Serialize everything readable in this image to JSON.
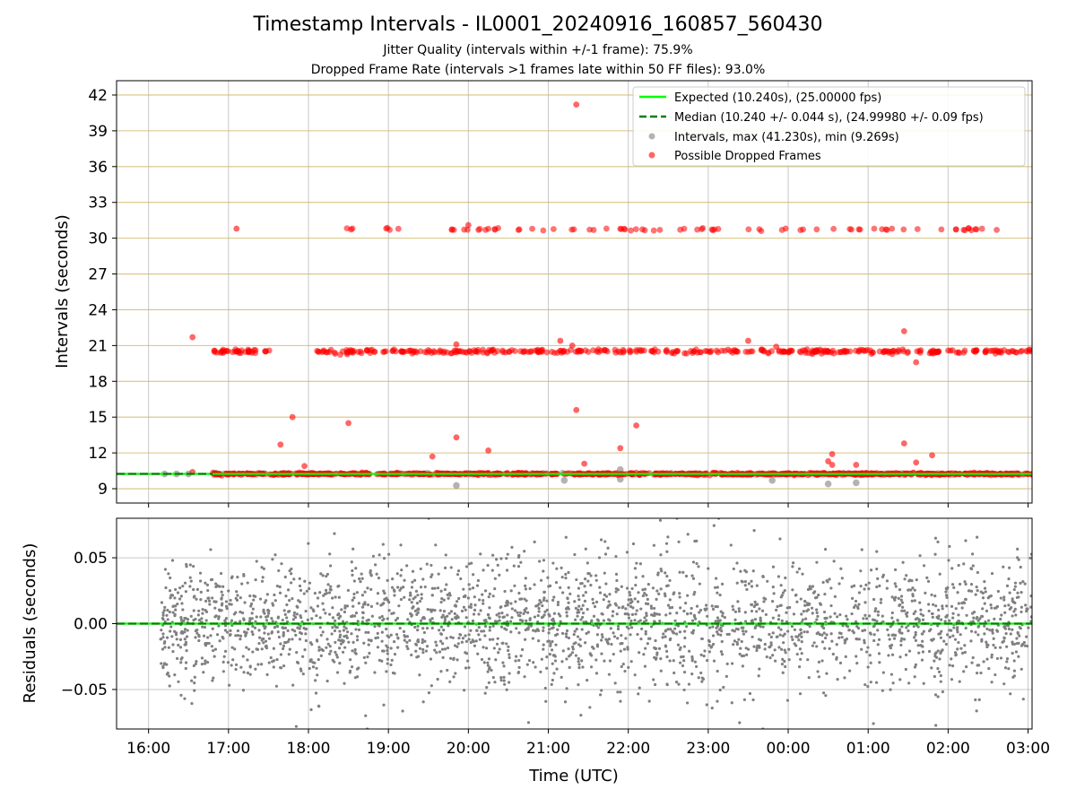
{
  "chart_data": [
    {
      "type": "scatter",
      "title": "Timestamp Intervals - IL0001_20240916_160857_560430",
      "subtitle_1": "Jitter Quality (intervals within +/-1 frame): 75.9%",
      "subtitle_2": "Dropped Frame Rate (intervals >1 frames late within 50 FF files): 93.0%",
      "ylabel": "Intervals (seconds)",
      "ylim": [
        7.8,
        43.2
      ],
      "yticks": [
        "9",
        "12",
        "15",
        "18",
        "21",
        "24",
        "27",
        "30",
        "33",
        "36",
        "39",
        "42"
      ],
      "grid": true,
      "legend_position": "top-right",
      "legend": [
        "Expected (10.240s), (25.00000 fps)",
        "Median (10.240 +/- 0.044 s), (24.99980 +/- 0.09 fps)",
        "Intervals, max (41.230s), min (9.269s)",
        "Possible Dropped Frames"
      ],
      "expected_interval": 10.24,
      "median_interval": 10.24,
      "max_interval": 41.23,
      "min_interval": 9.269,
      "series": [
        {
          "name": "Possible Dropped Frames",
          "color": "#ff0000",
          "bands": [
            {
              "level": 10.24,
              "start": 16.8,
              "end": 27.1,
              "count": 900,
              "spread": 0.04
            },
            {
              "level": 20.5,
              "start": 16.8,
              "end": 17.55,
              "count": 40,
              "spread": 0.08
            },
            {
              "level": 20.5,
              "start": 18.1,
              "end": 27.05,
              "count": 370,
              "spread": 0.08
            },
            {
              "level": 30.75,
              "start": 18.25,
              "end": 26.7,
              "count": 80,
              "spread": 0.05
            }
          ],
          "points": [
            [
              16.55,
              21.7
            ],
            [
              16.55,
              10.4
            ],
            [
              17.1,
              30.8
            ],
            [
              17.65,
              12.7
            ],
            [
              17.8,
              15.0
            ],
            [
              17.95,
              10.9
            ],
            [
              18.5,
              14.5
            ],
            [
              19.55,
              11.7
            ],
            [
              19.85,
              13.3
            ],
            [
              19.85,
              21.1
            ],
            [
              20.0,
              31.1
            ],
            [
              20.25,
              12.2
            ],
            [
              21.15,
              21.4
            ],
            [
              21.3,
              21.0
            ],
            [
              21.35,
              15.6
            ],
            [
              21.35,
              41.2
            ],
            [
              21.45,
              11.1
            ],
            [
              21.9,
              12.4
            ],
            [
              22.1,
              14.3
            ],
            [
              23.5,
              21.4
            ],
            [
              23.85,
              20.9
            ],
            [
              24.5,
              11.3
            ],
            [
              24.55,
              11.9
            ],
            [
              24.55,
              11.0
            ],
            [
              24.85,
              11.0
            ],
            [
              25.45,
              22.2
            ],
            [
              25.6,
              19.6
            ],
            [
              25.6,
              11.2
            ],
            [
              25.45,
              12.8
            ],
            [
              25.8,
              11.8
            ]
          ]
        },
        {
          "name": "Intervals",
          "color": "#808080",
          "points": [
            [
              16.2,
              10.24
            ],
            [
              16.35,
              10.24
            ],
            [
              16.5,
              10.24
            ],
            [
              19.85,
              9.27
            ],
            [
              21.2,
              9.7
            ],
            [
              21.9,
              9.8
            ],
            [
              21.9,
              10.6
            ],
            [
              23.8,
              9.7
            ],
            [
              24.5,
              9.4
            ],
            [
              24.85,
              9.5
            ]
          ]
        }
      ]
    },
    {
      "type": "scatter",
      "xlabel": "Time (UTC)",
      "ylabel": "Residuals (seconds)",
      "ylim": [
        -0.08,
        0.08
      ],
      "yticks": [
        "0.05",
        "0.00",
        "−0.05"
      ],
      "xticks": [
        "16:00",
        "17:00",
        "18:00",
        "19:00",
        "20:00",
        "21:00",
        "22:00",
        "23:00",
        "00:00",
        "01:00",
        "02:00",
        "03:00"
      ],
      "xlim_hours": [
        15.6,
        27.05
      ],
      "grid": true,
      "series": [
        {
          "name": "Residuals",
          "color": "#808080",
          "x_range": [
            16.15,
            27.05
          ],
          "count": 2600,
          "sigma": 0.025,
          "clip": 0.08
        }
      ]
    }
  ]
}
